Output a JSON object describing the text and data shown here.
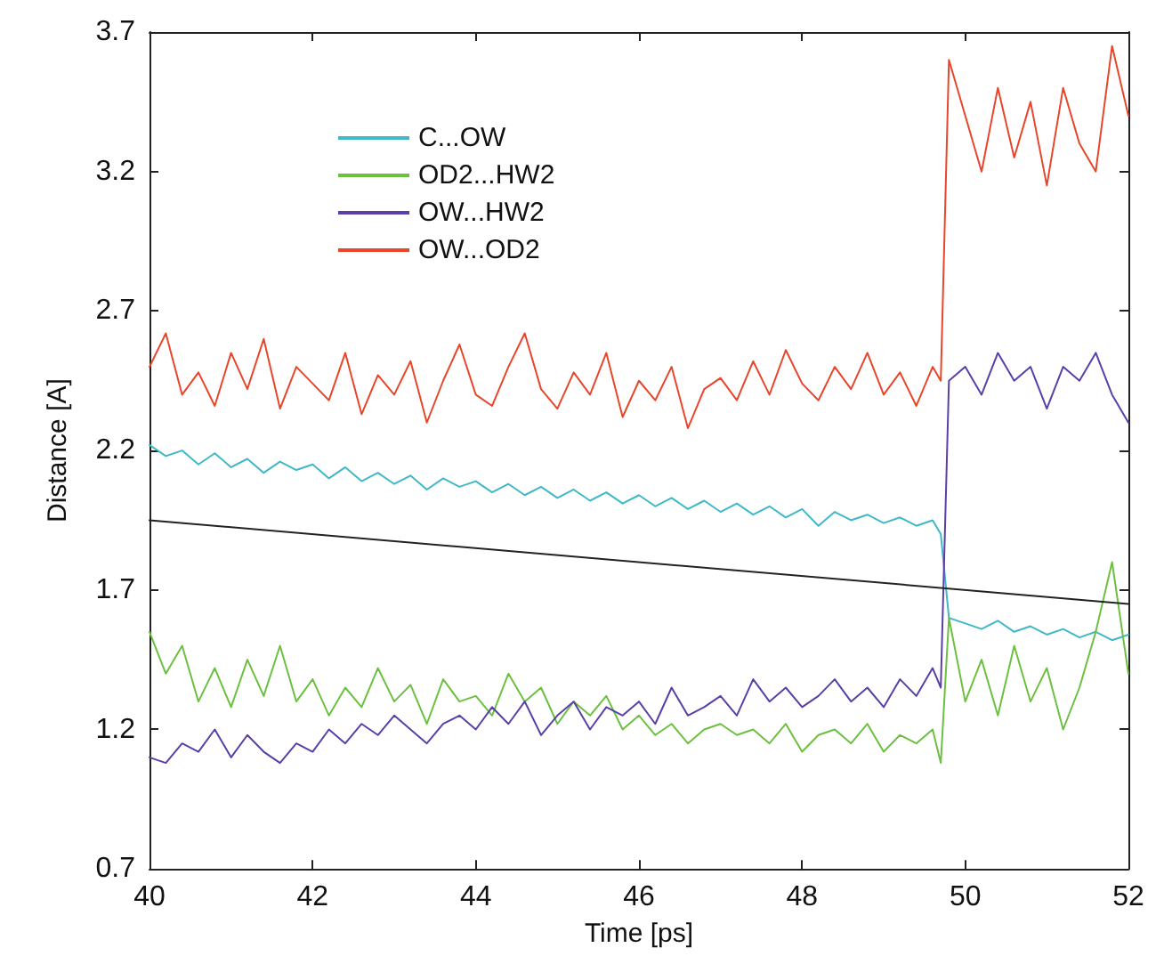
{
  "chart_data": {
    "type": "line",
    "xlabel": "Time [ps]",
    "ylabel": "Distance [A]",
    "x": [
      40,
      40.2,
      40.4,
      40.6,
      40.8,
      41,
      41.2,
      41.4,
      41.6,
      41.8,
      42,
      42.2,
      42.4,
      42.6,
      42.8,
      43,
      43.2,
      43.4,
      43.6,
      43.8,
      44,
      44.2,
      44.4,
      44.6,
      44.8,
      45,
      45.2,
      45.4,
      45.6,
      45.8,
      46,
      46.2,
      46.4,
      46.6,
      46.8,
      47,
      47.2,
      47.4,
      47.6,
      47.8,
      48,
      48.2,
      48.4,
      48.6,
      48.8,
      49,
      49.2,
      49.4,
      49.6,
      49.7,
      49.8,
      50,
      50.2,
      50.4,
      50.6,
      50.8,
      51,
      51.2,
      51.4,
      51.6,
      51.8,
      52
    ],
    "series": [
      {
        "name": "C...OW",
        "color": "#3fb8c8",
        "values": [
          2.22,
          2.18,
          2.2,
          2.15,
          2.19,
          2.14,
          2.17,
          2.12,
          2.16,
          2.13,
          2.15,
          2.1,
          2.14,
          2.09,
          2.12,
          2.08,
          2.11,
          2.06,
          2.1,
          2.07,
          2.09,
          2.05,
          2.08,
          2.04,
          2.07,
          2.03,
          2.06,
          2.02,
          2.05,
          2.01,
          2.04,
          2.0,
          2.03,
          1.99,
          2.02,
          1.98,
          2.01,
          1.97,
          2.0,
          1.96,
          1.99,
          1.93,
          1.98,
          1.95,
          1.97,
          1.94,
          1.96,
          1.93,
          1.95,
          1.9,
          1.6,
          1.58,
          1.56,
          1.59,
          1.55,
          1.57,
          1.54,
          1.56,
          1.53,
          1.55,
          1.52,
          1.54
        ]
      },
      {
        "name": "OD2...HW2",
        "color": "#6cc040",
        "values": [
          1.55,
          1.4,
          1.5,
          1.3,
          1.42,
          1.28,
          1.45,
          1.32,
          1.5,
          1.3,
          1.38,
          1.25,
          1.35,
          1.28,
          1.42,
          1.3,
          1.36,
          1.22,
          1.38,
          1.3,
          1.32,
          1.25,
          1.4,
          1.3,
          1.35,
          1.22,
          1.3,
          1.25,
          1.32,
          1.2,
          1.25,
          1.18,
          1.22,
          1.15,
          1.2,
          1.22,
          1.18,
          1.2,
          1.15,
          1.22,
          1.12,
          1.18,
          1.2,
          1.15,
          1.22,
          1.12,
          1.18,
          1.15,
          1.2,
          1.08,
          1.6,
          1.3,
          1.45,
          1.25,
          1.5,
          1.3,
          1.42,
          1.2,
          1.35,
          1.55,
          1.8,
          1.4
        ]
      },
      {
        "name": "OW...HW2",
        "color": "#5a3fa8",
        "values": [
          1.1,
          1.08,
          1.15,
          1.12,
          1.2,
          1.1,
          1.18,
          1.12,
          1.08,
          1.15,
          1.12,
          1.2,
          1.15,
          1.22,
          1.18,
          1.25,
          1.2,
          1.15,
          1.22,
          1.25,
          1.2,
          1.28,
          1.22,
          1.3,
          1.18,
          1.25,
          1.3,
          1.2,
          1.28,
          1.25,
          1.3,
          1.22,
          1.35,
          1.25,
          1.28,
          1.32,
          1.25,
          1.38,
          1.3,
          1.35,
          1.28,
          1.32,
          1.38,
          1.3,
          1.35,
          1.28,
          1.38,
          1.32,
          1.42,
          1.35,
          2.45,
          2.5,
          2.4,
          2.55,
          2.45,
          2.5,
          2.35,
          2.5,
          2.45,
          2.55,
          2.4,
          2.3
        ]
      },
      {
        "name": "OW...OD2",
        "color": "#e8462a",
        "values": [
          2.5,
          2.62,
          2.4,
          2.48,
          2.36,
          2.55,
          2.42,
          2.6,
          2.35,
          2.5,
          2.44,
          2.38,
          2.55,
          2.33,
          2.47,
          2.4,
          2.52,
          2.3,
          2.45,
          2.58,
          2.4,
          2.36,
          2.5,
          2.62,
          2.42,
          2.35,
          2.48,
          2.4,
          2.55,
          2.32,
          2.45,
          2.38,
          2.5,
          2.28,
          2.42,
          2.46,
          2.38,
          2.52,
          2.4,
          2.56,
          2.44,
          2.38,
          2.5,
          2.42,
          2.55,
          2.4,
          2.48,
          2.36,
          2.5,
          2.45,
          3.6,
          3.4,
          3.2,
          3.5,
          3.25,
          3.45,
          3.15,
          3.5,
          3.3,
          3.2,
          3.65,
          3.4
        ]
      },
      {
        "color": "#222222",
        "x": [
          40,
          52
        ],
        "values": [
          1.95,
          1.65
        ]
      }
    ],
    "xlim": [
      40,
      52
    ],
    "xticks": [
      40,
      42,
      44,
      46,
      48,
      50,
      52
    ],
    "ylim": [
      0.7,
      3.7
    ],
    "yticks": [
      0.7,
      1.2,
      1.7,
      2.2,
      2.7,
      3.2,
      3.7
    ],
    "grid": false,
    "legend": "top left",
    "marker": "none",
    "line_style": "solid"
  }
}
